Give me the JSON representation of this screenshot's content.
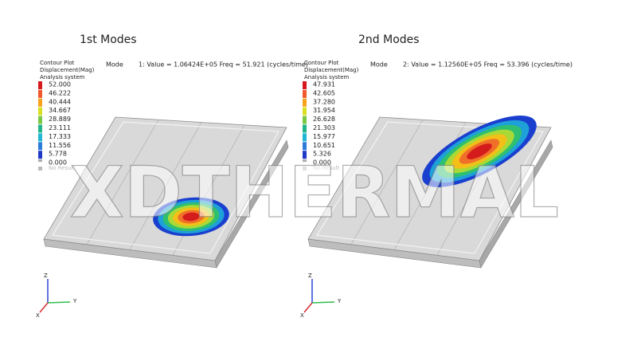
{
  "panels": [
    {
      "title": "1st Modes",
      "legend_header": [
        "Contour Plot",
        "Displacement(Mag)",
        "Analysis system"
      ],
      "mode_label": "Mode",
      "mode_text": "1: Value = 1.06424E+05 Freq =  51.921   (cycles/time)",
      "legend_values": [
        "52.000",
        "46.222",
        "40.444",
        "34.667",
        "28.889",
        "23.111",
        "17.333",
        "11.556",
        "5.778",
        "0.000"
      ],
      "no_result": "No Result",
      "axes": {
        "z": "Z",
        "y": "Y",
        "x": "X"
      }
    },
    {
      "title": "2nd Modes",
      "legend_header": [
        "Contour Plot",
        "Displacement(Mag)",
        "Analysis system"
      ],
      "mode_label": "Mode",
      "mode_text": "2: Value = 1.12560E+05 Freq =  53.396   (cycles/time)",
      "legend_values": [
        "47.931",
        "42.605",
        "37.280",
        "31.954",
        "26.628",
        "21.303",
        "15.977",
        "10.651",
        "5.326",
        "0.000"
      ],
      "no_result": "No Result",
      "axes": {
        "z": "Z",
        "y": "Y",
        "x": "X"
      }
    }
  ],
  "watermark": "XDTHERMAL"
}
